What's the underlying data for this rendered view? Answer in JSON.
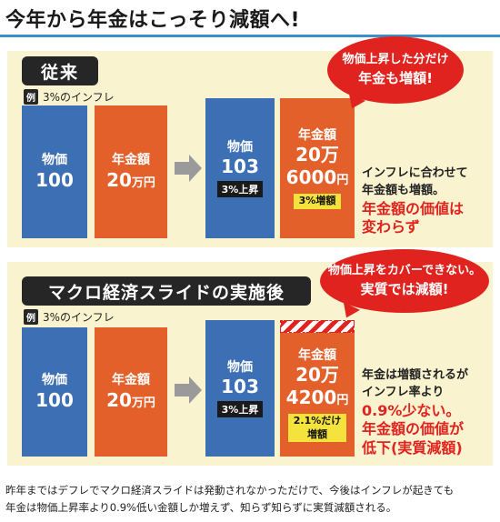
{
  "title": "今年から年金はこっそり減額へ!",
  "section_a": {
    "label": "従来",
    "example_badge": "例",
    "example_text": "3%のインフレ",
    "before_price": {
      "label": "物価",
      "value": "100"
    },
    "before_pension": {
      "label": "年金額",
      "value": "20",
      "unit": "万円"
    },
    "after_price": {
      "label": "物価",
      "value": "103",
      "badge": "3%上昇"
    },
    "after_pension": {
      "label": "年金額",
      "value_line1": "20万",
      "value_line2": "6000",
      "unit": "円",
      "badge": "3%増額"
    },
    "bubble_line1": "物価上昇した分だけ",
    "bubble_line2": "年金も増額!",
    "note_line1": "インフレに合わせて",
    "note_line2": "年金額も増額。",
    "note_hl1": "年金額の価値は",
    "note_hl2": "変わらず"
  },
  "section_b": {
    "label": "マクロ経済スライドの実施後",
    "example_badge": "例",
    "example_text": "3%のインフレ",
    "before_price": {
      "label": "物価",
      "value": "100"
    },
    "before_pension": {
      "label": "年金額",
      "value": "20",
      "unit": "万円"
    },
    "after_price": {
      "label": "物価",
      "value": "103",
      "badge": "3%上昇"
    },
    "after_pension": {
      "label": "年金額",
      "value_line1": "20万",
      "value_line2": "4200",
      "unit": "円",
      "badge_line1": "2.1%だけ",
      "badge_line2": "増額"
    },
    "bubble_line1": "物価上昇をカバーできない。",
    "bubble_line2": "実質では減額!",
    "note_line1": "年金は増額されるが",
    "note_line2": "インフレ率より",
    "note_hl1": "0.9%少ない。",
    "note_hl2": "年金額の価値が",
    "note_hl3": "低下(実質減額)"
  },
  "caption_line1": "昨年まではデフレでマクロ経済スライドは発動されなかっただけで、今後はインフレが起きても",
  "caption_line2": "年金は物価上昇率より0.9%低い金額しか増えず、知らず知らずに実質減額される。",
  "colors": {
    "blue": "#3d6fb5",
    "orange": "#e3602a",
    "red": "#e0231e",
    "panel": "#faf3cf",
    "yellow": "#f4e33c"
  }
}
